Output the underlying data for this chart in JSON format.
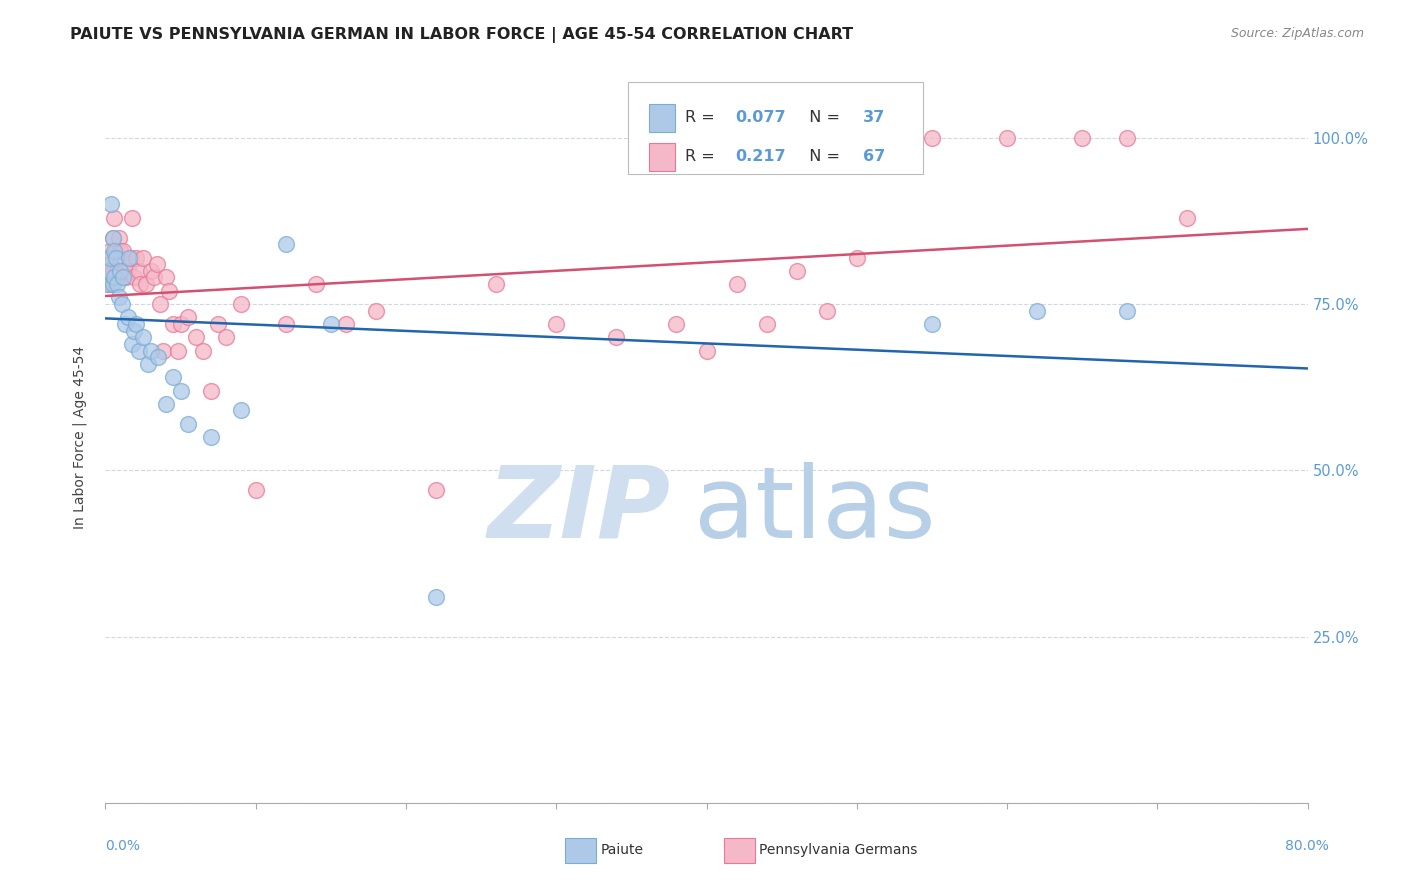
{
  "title": "PAIUTE VS PENNSYLVANIA GERMAN IN LABOR FORCE | AGE 45-54 CORRELATION CHART",
  "source": "Source: ZipAtlas.com",
  "ylabel": "In Labor Force | Age 45-54",
  "xmin": 0.0,
  "xmax": 0.8,
  "ymin": 0.0,
  "ymax": 1.1,
  "yticks": [
    0.0,
    0.25,
    0.5,
    0.75,
    1.0
  ],
  "ytick_labels": [
    "",
    "25.0%",
    "50.0%",
    "75.0%",
    "100.0%"
  ],
  "right_axis_color": "#5b9bd5",
  "grid_color": "#d0d8e8",
  "background_color": "#ffffff",
  "watermark_zip_color": "#d0dff0",
  "watermark_atlas_color": "#b8cfe8",
  "legend_R1": "0.077",
  "legend_N1": "37",
  "legend_R2": "0.217",
  "legend_N2": "67",
  "paiute_color": "#aec9e8",
  "paiute_edge": "#7aadd4",
  "penn_color": "#f4b8c8",
  "penn_edge": "#e87898",
  "paiute_line_color": "#2166ac",
  "penn_line_color": "#d45070",
  "title_fontsize": 11.5,
  "paiute_x": [
    0.001,
    0.002,
    0.003,
    0.004,
    0.005,
    0.005,
    0.006,
    0.006,
    0.007,
    0.008,
    0.009,
    0.01,
    0.011,
    0.012,
    0.013,
    0.015,
    0.016,
    0.018,
    0.019,
    0.02,
    0.022,
    0.025,
    0.028,
    0.03,
    0.035,
    0.04,
    0.045,
    0.05,
    0.055,
    0.07,
    0.09,
    0.12,
    0.15,
    0.22,
    0.55,
    0.62,
    0.68
  ],
  "paiute_y": [
    0.78,
    0.8,
    0.82,
    0.9,
    0.85,
    0.78,
    0.83,
    0.79,
    0.82,
    0.78,
    0.76,
    0.8,
    0.75,
    0.79,
    0.72,
    0.73,
    0.82,
    0.69,
    0.71,
    0.72,
    0.68,
    0.7,
    0.66,
    0.68,
    0.67,
    0.6,
    0.64,
    0.62,
    0.57,
    0.55,
    0.59,
    0.84,
    0.72,
    0.31,
    0.72,
    0.74,
    0.74
  ],
  "penn_x": [
    0.001,
    0.001,
    0.002,
    0.002,
    0.003,
    0.003,
    0.004,
    0.004,
    0.005,
    0.005,
    0.006,
    0.007,
    0.008,
    0.009,
    0.01,
    0.011,
    0.012,
    0.013,
    0.014,
    0.015,
    0.016,
    0.017,
    0.018,
    0.019,
    0.02,
    0.022,
    0.023,
    0.025,
    0.027,
    0.03,
    0.032,
    0.034,
    0.036,
    0.038,
    0.04,
    0.042,
    0.045,
    0.048,
    0.05,
    0.055,
    0.06,
    0.065,
    0.07,
    0.075,
    0.08,
    0.09,
    0.1,
    0.12,
    0.14,
    0.16,
    0.18,
    0.22,
    0.26,
    0.3,
    0.34,
    0.38,
    0.4,
    0.42,
    0.44,
    0.46,
    0.48,
    0.5,
    0.55,
    0.6,
    0.65,
    0.68,
    0.72
  ],
  "penn_y": [
    0.82,
    0.78,
    0.82,
    0.79,
    0.83,
    0.8,
    0.81,
    0.78,
    0.85,
    0.8,
    0.88,
    0.83,
    0.8,
    0.85,
    0.83,
    0.8,
    0.83,
    0.8,
    0.79,
    0.8,
    0.81,
    0.82,
    0.88,
    0.79,
    0.82,
    0.8,
    0.78,
    0.82,
    0.78,
    0.8,
    0.79,
    0.81,
    0.75,
    0.68,
    0.79,
    0.77,
    0.72,
    0.68,
    0.72,
    0.73,
    0.7,
    0.68,
    0.62,
    0.72,
    0.7,
    0.75,
    0.47,
    0.72,
    0.78,
    0.72,
    0.74,
    0.47,
    0.78,
    0.72,
    0.7,
    0.72,
    0.68,
    0.78,
    0.72,
    0.8,
    0.74,
    0.82,
    1.0,
    1.0,
    1.0,
    1.0,
    0.88
  ]
}
